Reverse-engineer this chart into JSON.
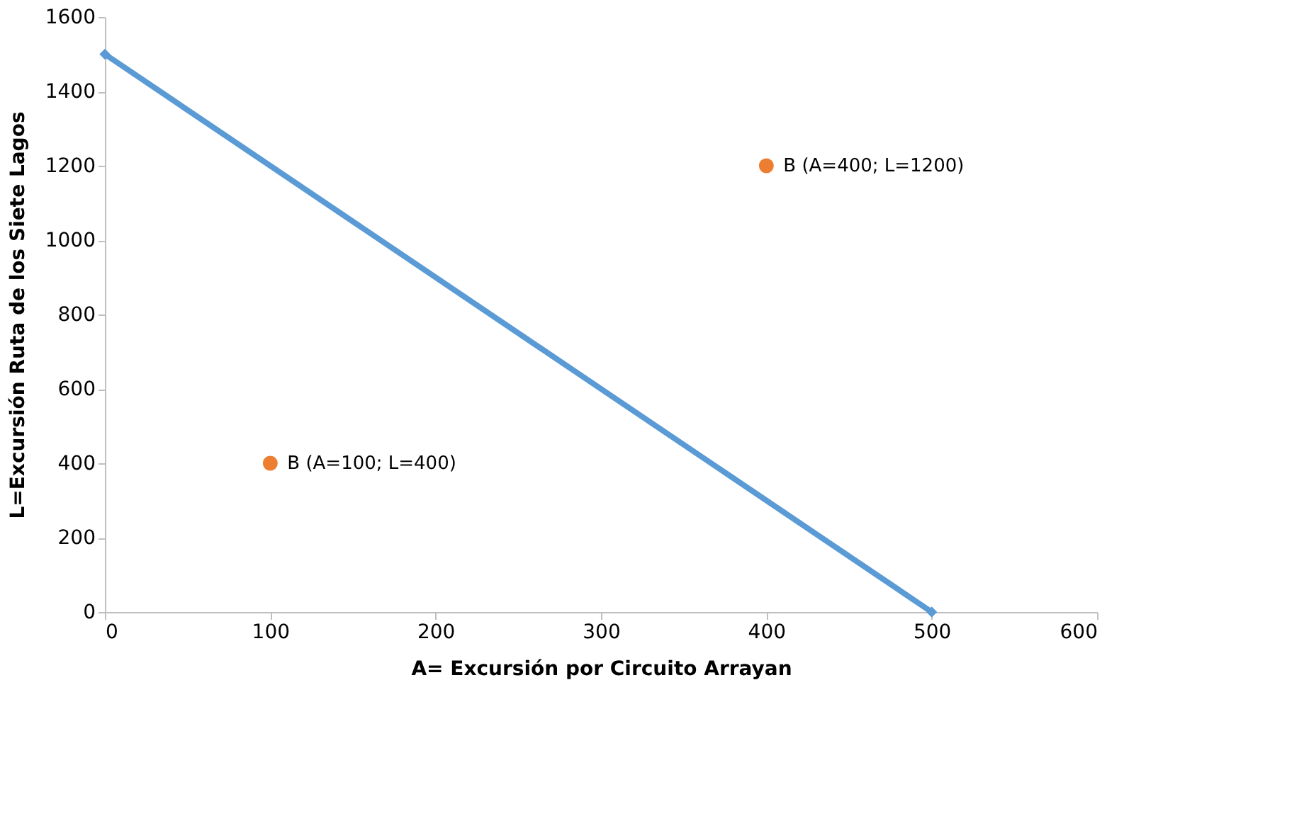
{
  "chart_data": {
    "type": "line",
    "xlabel": "A= Excursión  por Circuito Arrayan",
    "ylabel": "L=Excursión  Ruta de los Siete Lagos",
    "xlim": [
      0,
      600
    ],
    "xticks": [
      0,
      100,
      200,
      300,
      400,
      500,
      600
    ],
    "ylim": [
      0,
      1600
    ],
    "yticks": [
      0,
      200,
      400,
      600,
      800,
      1000,
      1200,
      1400,
      1600
    ],
    "grid": false,
    "series": [
      {
        "color": "#5b9bd5",
        "marker": "diamond",
        "line_style": "solid",
        "x": [
          0,
          500
        ],
        "values": [
          1500,
          0
        ]
      },
      {
        "type": "scatter",
        "color": "#ed7d31",
        "marker": "circle",
        "x": [
          100,
          400
        ],
        "values": [
          400,
          1200
        ]
      }
    ],
    "annotations": [
      {
        "text": "B (A=100; L=400)",
        "x": 100,
        "y": 400
      },
      {
        "text": "B  (A=400; L=1200)",
        "x": 400,
        "y": 1200
      }
    ]
  }
}
